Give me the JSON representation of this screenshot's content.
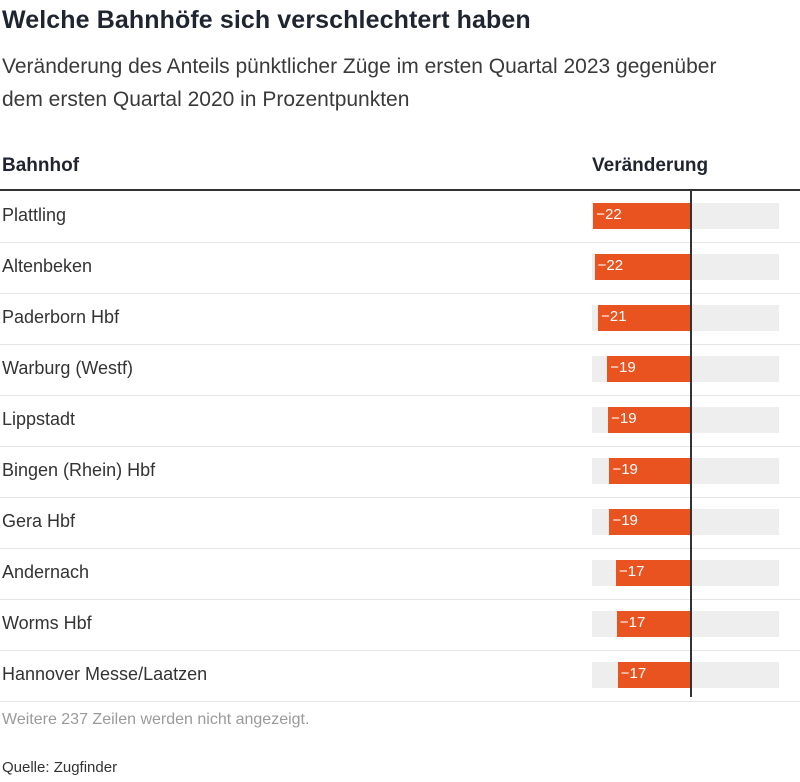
{
  "title": "Welche Bahnhöfe sich verschlechtert haben",
  "subtitle": "Veränderung des Anteils pünktlicher Züge im ersten Quartal 2023 gegenüber dem ersten Quartal 2020 in Prozentpunkten",
  "table": {
    "col_name": "Bahnhof",
    "col_value": "Veränderung"
  },
  "note": "Weitere 237 Zeilen werden nicht angezeigt.",
  "source": "Quelle: Zugfinder",
  "colors": {
    "bar": "#e8531f",
    "track": "#eeeeee",
    "axis": "#333333"
  },
  "chart_data": {
    "type": "bar",
    "orientation": "horizontal",
    "categories": [
      "Plattling",
      "Altenbeken",
      "Paderborn Hbf",
      "Warburg (Westf)",
      "Lippstadt",
      "Bingen (Rhein) Hbf",
      "Gera Hbf",
      "Andernach",
      "Worms Hbf",
      "Hannover Messe/Laatzen"
    ],
    "values": [
      -22.4,
      -22.1,
      -21.3,
      -19.2,
      -19.0,
      -18.7,
      -18.7,
      -17.2,
      -17.0,
      -16.8
    ],
    "labels": [
      "−22",
      "−22",
      "−21",
      "−19",
      "−19",
      "−19",
      "−19",
      "−17",
      "−17",
      "−17"
    ],
    "xlim": [
      -22.7,
      22.7
    ],
    "title": "Welche Bahnhöfe sich verschlechtert haben",
    "xlabel": "",
    "ylabel": ""
  }
}
